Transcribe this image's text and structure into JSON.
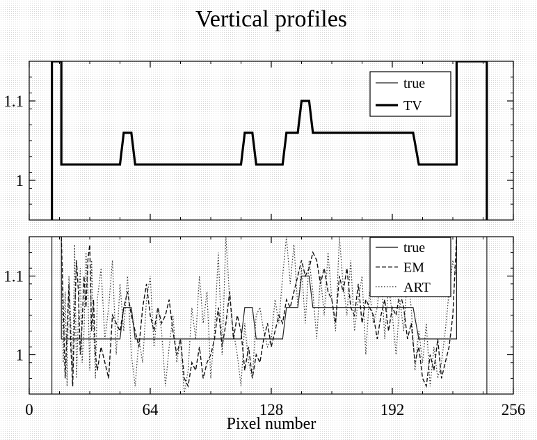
{
  "figure": {
    "title": "Vertical profiles",
    "xlabel": "Pixel number"
  },
  "chart_data": [
    {
      "type": "line",
      "title": "Vertical profiles",
      "xlabel": "",
      "ylabel": "",
      "xlim": [
        0,
        256
      ],
      "ylim": [
        0.95,
        1.15
      ],
      "yticks": [
        1,
        1.1
      ],
      "ytick_labels": [
        "1",
        "1.1"
      ],
      "grid": false,
      "legend_position": "top-right",
      "series": [
        {
          "name": "true",
          "style": "thin-solid",
          "x": [
            12,
            12,
            17,
            17,
            48,
            50,
            54,
            56,
            112,
            114,
            118,
            120,
            134,
            136,
            142,
            144,
            148,
            150,
            203,
            206,
            226,
            226,
            242,
            242
          ],
          "y": [
            0.95,
            1.15,
            1.15,
            1.02,
            1.02,
            1.06,
            1.06,
            1.02,
            1.02,
            1.06,
            1.06,
            1.02,
            1.02,
            1.06,
            1.06,
            1.1,
            1.1,
            1.06,
            1.06,
            1.02,
            1.02,
            1.15,
            1.15,
            0.95
          ]
        },
        {
          "name": "TV",
          "style": "thick-solid",
          "x": [
            12,
            12,
            17,
            17,
            48,
            50,
            54,
            56,
            112,
            114,
            118,
            120,
            134,
            136,
            142,
            144,
            148,
            150,
            203,
            206,
            226,
            226,
            242,
            242
          ],
          "y": [
            0.95,
            1.15,
            1.15,
            1.02,
            1.02,
            1.06,
            1.06,
            1.02,
            1.02,
            1.06,
            1.06,
            1.02,
            1.02,
            1.06,
            1.06,
            1.1,
            1.1,
            1.06,
            1.06,
            1.02,
            1.02,
            1.15,
            1.15,
            0.95
          ]
        }
      ]
    },
    {
      "type": "line",
      "xlabel": "Pixel number",
      "ylabel": "",
      "xlim": [
        0,
        256
      ],
      "ylim": [
        0.95,
        1.15
      ],
      "xticks": [
        0,
        64,
        128,
        192,
        256
      ],
      "xtick_labels": [
        "0",
        "64",
        "128",
        "192",
        "256"
      ],
      "yticks": [
        1,
        1.1
      ],
      "ytick_labels": [
        "1",
        "1.1"
      ],
      "grid": false,
      "legend_position": "top-right",
      "series": [
        {
          "name": "true",
          "style": "thin-solid",
          "x": [
            12,
            12,
            17,
            17,
            48,
            50,
            54,
            56,
            112,
            114,
            118,
            120,
            134,
            136,
            142,
            144,
            148,
            150,
            203,
            206,
            226,
            226,
            242,
            242
          ],
          "y": [
            0.95,
            1.15,
            1.15,
            1.02,
            1.02,
            1.06,
            1.06,
            1.02,
            1.02,
            1.06,
            1.06,
            1.02,
            1.02,
            1.06,
            1.06,
            1.1,
            1.1,
            1.06,
            1.06,
            1.02,
            1.02,
            1.15,
            1.15,
            0.95
          ]
        },
        {
          "name": "EM",
          "style": "dashed",
          "x": [
            17,
            18,
            19,
            20,
            21,
            22,
            23,
            24,
            25,
            26,
            27,
            28,
            29,
            30,
            31,
            32,
            33,
            34,
            35,
            36,
            38,
            40,
            42,
            44,
            46,
            48,
            50,
            52,
            54,
            56,
            58,
            60,
            62,
            64,
            66,
            68,
            70,
            72,
            74,
            76,
            78,
            80,
            82,
            84,
            86,
            88,
            90,
            92,
            94,
            96,
            98,
            100,
            102,
            104,
            106,
            108,
            110,
            112,
            114,
            116,
            118,
            120,
            122,
            124,
            126,
            128,
            130,
            132,
            134,
            136,
            138,
            140,
            142,
            144,
            146,
            148,
            150,
            152,
            154,
            156,
            158,
            160,
            162,
            164,
            166,
            168,
            170,
            172,
            174,
            176,
            178,
            180,
            182,
            184,
            186,
            188,
            190,
            192,
            194,
            196,
            198,
            200,
            202,
            204,
            206,
            208,
            210,
            212,
            214,
            216,
            218,
            220,
            222,
            224,
            226
          ],
          "y": [
            1.15,
            1.06,
            0.97,
            1.03,
            1.09,
            1.01,
            0.96,
            1.05,
            1.12,
            1.08,
            1.0,
            1.04,
            1.1,
            1.06,
            1.12,
            1.14,
            1.03,
            1.07,
            1.0,
            0.98,
            1.01,
            0.99,
            0.97,
            1.05,
            1.04,
            1.03,
            1.06,
            1.08,
            1.05,
            1.03,
            1.01,
            1.06,
            1.09,
            1.05,
            1.03,
            1.06,
            1.04,
            1.05,
            1.07,
            1.03,
            1.0,
            1.02,
            0.97,
            0.96,
            0.99,
            0.98,
            1.01,
            0.97,
            0.99,
            1.0,
            1.02,
            1.06,
            1.01,
            1.04,
            1.08,
            1.02,
            1.05,
            1.03,
            0.98,
            1.01,
            0.97,
            1.0,
            0.99,
            1.02,
            1.04,
            1.01,
            1.03,
            1.05,
            1.04,
            1.07,
            1.06,
            1.08,
            1.1,
            1.12,
            1.1,
            1.11,
            1.13,
            1.12,
            1.09,
            1.11,
            1.08,
            1.07,
            1.04,
            1.1,
            1.08,
            1.11,
            1.06,
            1.05,
            1.09,
            1.04,
            1.07,
            1.06,
            1.05,
            1.02,
            1.05,
            1.07,
            1.03,
            1.06,
            1.05,
            1.08,
            1.06,
            1.02,
            1.04,
            0.99,
            1.01,
            0.97,
            0.96,
            1.0,
            0.98,
            1.02,
            0.97,
            0.99,
            1.01,
            1.05,
            1.15
          ]
        },
        {
          "name": "ART",
          "style": "dotted",
          "x": [
            17,
            18,
            19,
            20,
            21,
            22,
            23,
            24,
            25,
            26,
            27,
            28,
            29,
            30,
            31,
            32,
            33,
            34,
            35,
            36,
            38,
            40,
            42,
            44,
            46,
            48,
            50,
            52,
            54,
            56,
            58,
            60,
            62,
            64,
            66,
            68,
            70,
            72,
            74,
            76,
            78,
            80,
            82,
            84,
            86,
            88,
            90,
            92,
            94,
            96,
            98,
            100,
            102,
            104,
            106,
            108,
            110,
            112,
            114,
            116,
            118,
            120,
            122,
            124,
            126,
            128,
            130,
            132,
            134,
            136,
            138,
            140,
            142,
            144,
            146,
            148,
            150,
            152,
            154,
            156,
            158,
            160,
            162,
            164,
            166,
            168,
            170,
            172,
            174,
            176,
            178,
            180,
            182,
            184,
            186,
            188,
            190,
            192,
            194,
            196,
            198,
            200,
            202,
            204,
            206,
            208,
            210,
            212,
            214,
            216,
            218,
            220,
            222,
            224,
            226
          ],
          "y": [
            1.13,
            0.99,
            1.08,
            0.96,
            1.1,
            1.04,
            0.98,
            1.14,
            0.97,
            1.05,
            1.11,
            0.99,
            1.03,
            1.13,
            1.08,
            0.98,
            1.12,
            1.04,
            0.97,
            1.07,
            1.11,
            1.02,
            1.06,
            1.12,
            1.0,
            1.09,
            1.03,
            1.1,
            1.0,
            0.96,
            1.02,
            0.99,
            1.07,
            1.1,
            1.01,
            1.06,
            1.03,
            0.96,
            1.01,
            1.05,
            0.99,
            1.02,
            0.95,
            0.98,
            1.06,
            1.02,
            1.1,
            1.04,
            1.08,
            0.97,
            1.03,
            1.13,
            1.0,
            1.15,
            1.07,
            1.03,
            1.0,
            0.96,
            1.04,
            0.99,
            0.97,
            1.05,
            1.06,
            1.03,
            1.01,
            1.02,
            1.07,
            1.04,
            1.1,
            1.15,
            1.09,
            1.14,
            1.06,
            1.11,
            1.04,
            1.12,
            1.08,
            1.02,
            1.1,
            1.05,
            1.13,
            1.07,
            1.03,
            1.15,
            1.09,
            1.05,
            1.12,
            1.03,
            1.07,
            1.1,
            1.0,
            1.08,
            1.04,
            1.06,
            1.11,
            1.02,
            1.09,
            1.05,
            1.0,
            1.07,
            1.03,
            1.1,
            1.06,
            0.98,
            1.03,
            0.99,
            1.04,
            0.96,
            1.01,
            0.97,
            0.99,
            1.03,
            1.08,
            1.12,
            1.1
          ]
        }
      ]
    }
  ]
}
